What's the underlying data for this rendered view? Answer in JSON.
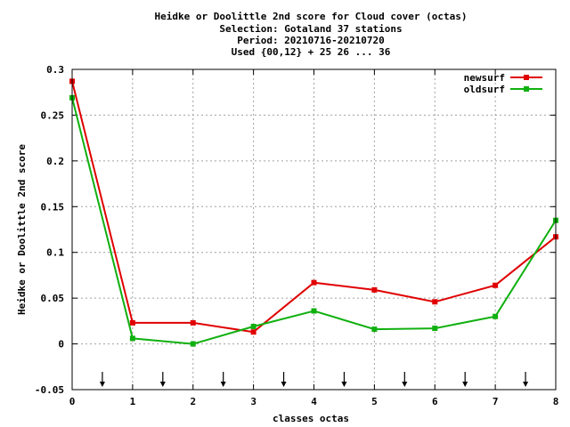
{
  "chart_data": {
    "type": "line",
    "title_lines": [
      "Heidke or Doolittle 2nd score  for Cloud cover (octas)",
      "Selection: Gotaland     37 stations",
      "Period: 20210716-20210720",
      "Used {00,12} + 25 26 ... 36"
    ],
    "xlabel": "classes octas",
    "ylabel": "Heidke or Doolittle 2nd score",
    "xlim": [
      0,
      8
    ],
    "ylim": [
      -0.05,
      0.3
    ],
    "x_ticks": [
      "0",
      "1",
      "2",
      "3",
      "4",
      "5",
      "6",
      "7",
      "8"
    ],
    "y_ticks": [
      "-0.05",
      "0",
      "0.05",
      "0.1",
      "0.15",
      "0.2",
      "0.25",
      "0.3"
    ],
    "grid": true,
    "legend_position": "top-right",
    "series": [
      {
        "name": "newsurf",
        "color": "#e00000",
        "x": [
          0,
          1,
          2,
          3,
          4,
          5,
          6,
          7,
          8
        ],
        "values": [
          0.287,
          0.023,
          0.023,
          0.013,
          0.067,
          0.059,
          0.046,
          0.064,
          0.117
        ]
      },
      {
        "name": "oldsurf",
        "color": "#10b010",
        "x": [
          0,
          1,
          2,
          3,
          4,
          5,
          6,
          7,
          8
        ],
        "values": [
          0.269,
          0.006,
          0.0,
          0.019,
          0.036,
          0.016,
          0.017,
          0.03,
          0.135
        ]
      }
    ],
    "arrow_markers_x": [
      0.5,
      1.5,
      2.5,
      3.5,
      4.5,
      5.5,
      6.5,
      7.5
    ]
  }
}
